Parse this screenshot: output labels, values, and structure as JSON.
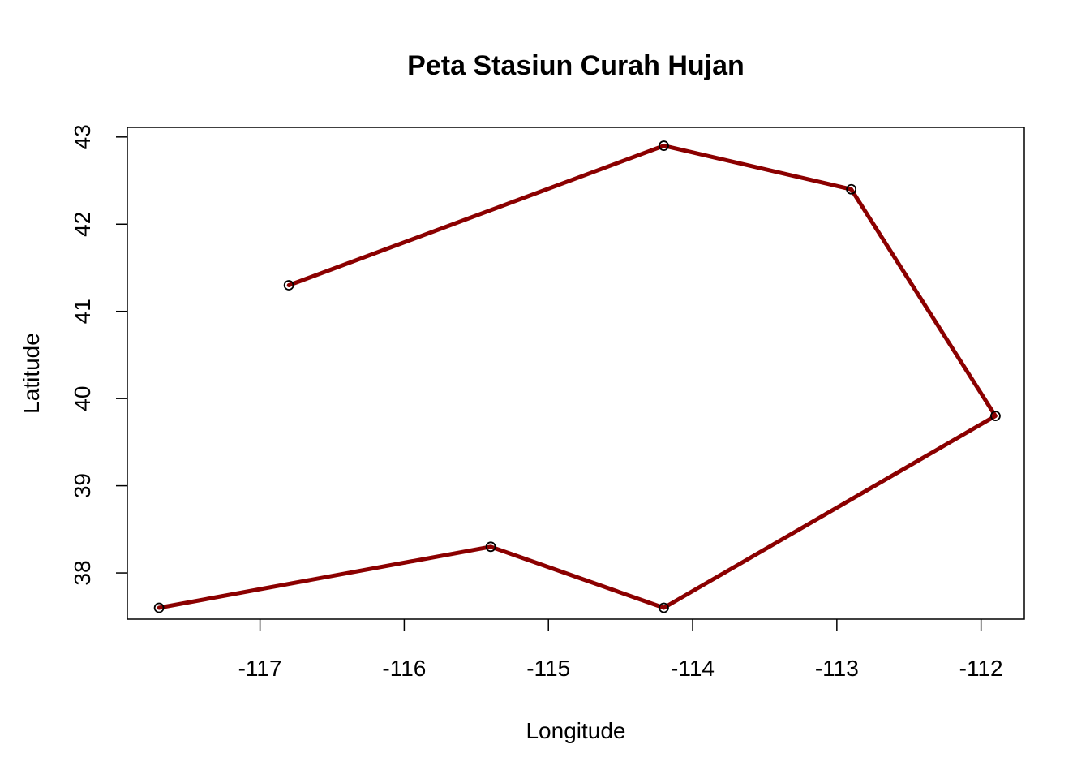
{
  "chart_data": {
    "type": "line",
    "title": "Peta Stasiun Curah Hujan",
    "xlabel": "Longitude",
    "ylabel": "Latitude",
    "xlim": [
      -117.92,
      -111.7
    ],
    "ylim": [
      37.47,
      43.11
    ],
    "x_ticks": [
      -117,
      -116,
      -115,
      -114,
      -113,
      -112
    ],
    "x_tick_labels": [
      "-117",
      "-116",
      "-115",
      "-114",
      "-113",
      "-112"
    ],
    "y_ticks": [
      38,
      39,
      40,
      41,
      42,
      43
    ],
    "y_tick_labels": [
      "38",
      "39",
      "40",
      "41",
      "42",
      "43"
    ],
    "grid": false,
    "colors": {
      "line": "#8b0000",
      "points": "#000000"
    },
    "series": [
      {
        "x": [
          -116.8,
          -114.2,
          -112.9,
          -111.9,
          -114.2,
          -115.4,
          -117.7
        ],
        "y": [
          41.3,
          42.9,
          42.4,
          39.8,
          37.6,
          38.3,
          37.6
        ]
      }
    ]
  }
}
